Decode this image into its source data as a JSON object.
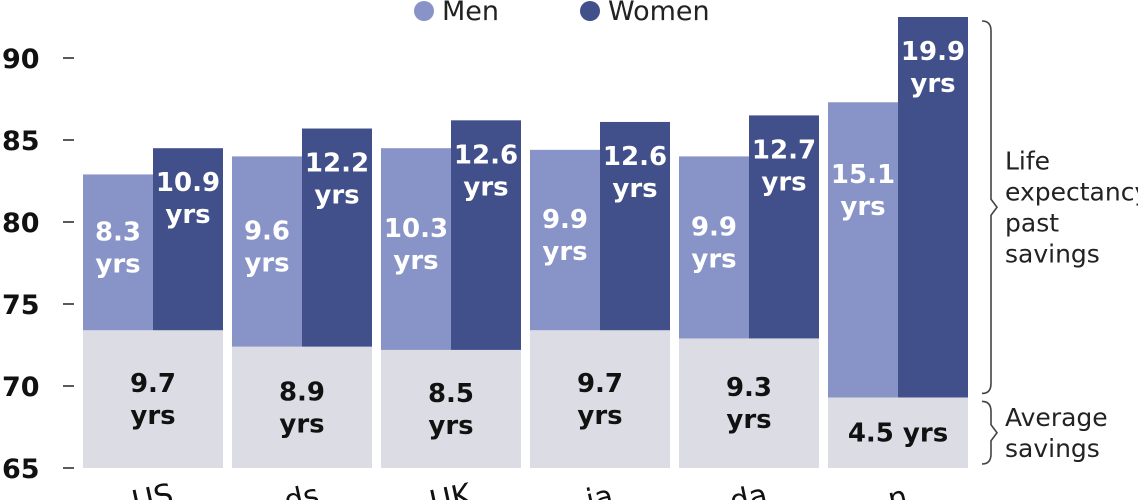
{
  "chart_data": {
    "type": "bar",
    "stacked": true,
    "legend": {
      "position": "top-center",
      "items": [
        {
          "key": "men",
          "label": "Men",
          "color": "#8893c7"
        },
        {
          "key": "women",
          "label": "Women",
          "color": "#414f8a"
        }
      ]
    },
    "yaxis": {
      "min": 65,
      "max": 92.5,
      "ticks": [
        65,
        70,
        75,
        80,
        85,
        90
      ]
    },
    "grid": false,
    "categories": [
      "US",
      "Netherlands",
      "UK",
      "Australia",
      "Canada",
      "Japan"
    ],
    "category_labels": [
      "US",
      "ds",
      "UK",
      "ia",
      "da",
      "n"
    ],
    "savings_color": "#dcdde4",
    "groups": [
      {
        "category": "US",
        "savings_end": 73.4,
        "savings_label": "9.7\nyrs",
        "men_total": 82.9,
        "men_label": "8.3\nyrs",
        "women_total": 84.5,
        "women_label": "10.9\nyrs"
      },
      {
        "category": "Netherlands",
        "savings_end": 72.4,
        "savings_label": "8.9\nyrs",
        "men_total": 84.0,
        "men_label": "9.6\nyrs",
        "women_total": 85.7,
        "women_label": "12.2\nyrs"
      },
      {
        "category": "UK",
        "savings_end": 72.2,
        "savings_label": "8.5\nyrs",
        "men_total": 84.5,
        "men_label": "10.3\nyrs",
        "women_total": 86.2,
        "women_label": "12.6\nyrs"
      },
      {
        "category": "Australia",
        "savings_end": 73.4,
        "savings_label": "9.7\nyrs",
        "men_total": 84.4,
        "men_label": "9.9\nyrs",
        "women_total": 86.1,
        "women_label": "12.6\nyrs"
      },
      {
        "category": "Canada",
        "savings_end": 72.9,
        "savings_label": "9.3\nyrs",
        "men_total": 84.0,
        "men_label": "9.9\nyrs",
        "women_total": 86.5,
        "women_label": "12.7\nyrs"
      },
      {
        "category": "Japan",
        "savings_end": 69.3,
        "savings_label": "4.5 yrs",
        "men_total": 87.3,
        "men_label": "15.1\nyrs",
        "women_total": 92.5,
        "women_label": "19.9\nyrs"
      }
    ],
    "annotations": [
      {
        "key": "life",
        "text": "Life\nexpectancy\npast\nsavings",
        "from": 69.3,
        "to": 92.5
      },
      {
        "key": "savings",
        "text": "Average\nsavings",
        "from": 65,
        "to": 69.3
      }
    ]
  }
}
